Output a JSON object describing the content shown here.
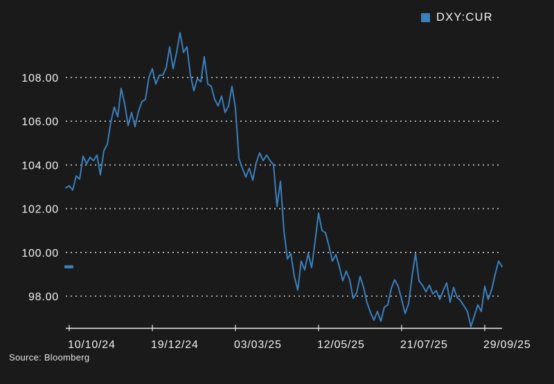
{
  "page": {
    "background": "#1a1a1b",
    "source_note": "Source: Bloomberg"
  },
  "legend": {
    "label": "DXY:CUR",
    "swatch_color": "#3a80bd"
  },
  "chart_data": {
    "type": "line",
    "title": "",
    "xlabel": "",
    "ylabel": "",
    "grid": "dotted-horizontal",
    "legend_position": "top-right",
    "series": [
      {
        "name": "DXY:CUR",
        "color": "#3a80bd",
        "values": [
          102.95,
          103.05,
          102.85,
          103.5,
          103.35,
          104.4,
          104.05,
          104.35,
          104.2,
          104.45,
          103.55,
          104.65,
          104.95,
          105.95,
          106.65,
          106.2,
          107.5,
          106.8,
          105.8,
          106.4,
          105.75,
          106.45,
          106.9,
          107.0,
          108.0,
          108.4,
          107.7,
          108.1,
          108.1,
          108.45,
          109.4,
          108.4,
          109.15,
          110.05,
          109.15,
          109.4,
          108.1,
          107.4,
          107.95,
          107.8,
          108.95,
          107.7,
          107.6,
          107.0,
          106.7,
          107.15,
          106.4,
          106.7,
          107.6,
          106.6,
          104.3,
          103.85,
          103.45,
          103.85,
          103.3,
          104.1,
          104.55,
          104.2,
          104.45,
          104.2,
          104.0,
          102.1,
          103.25,
          101.0,
          99.7,
          99.95,
          98.9,
          98.28,
          99.6,
          99.2,
          99.95,
          99.3,
          100.5,
          101.8,
          101.0,
          100.9,
          100.3,
          99.6,
          99.9,
          99.35,
          98.7,
          99.15,
          98.75,
          97.9,
          98.15,
          98.9,
          98.4,
          97.7,
          97.25,
          96.9,
          97.3,
          96.85,
          97.5,
          97.6,
          98.35,
          98.75,
          98.45,
          97.85,
          97.2,
          97.65,
          98.9,
          99.95,
          98.7,
          98.5,
          98.2,
          98.5,
          98.1,
          98.25,
          97.85,
          98.25,
          98.6,
          97.72,
          98.4,
          97.95,
          97.8,
          97.55,
          97.3,
          96.6,
          97.1,
          97.6,
          97.3,
          98.45,
          97.85,
          98.3,
          99.0,
          99.6,
          99.35
        ]
      }
    ],
    "last_price": 99.35,
    "x_tick_labels": [
      "10/10/24",
      "19/12/24",
      "03/03/25",
      "12/05/25",
      "21/07/25",
      "29/09/25"
    ],
    "x_tick_indices": [
      1,
      25,
      49,
      73,
      97,
      121
    ],
    "y_tick_labels": [
      "108.00",
      "106.00",
      "104.00",
      "102.00",
      "100.00",
      "98.00"
    ],
    "y_tick_values": [
      108,
      106,
      104,
      102,
      100,
      98
    ],
    "ylim": [
      96.5,
      110.5
    ]
  }
}
